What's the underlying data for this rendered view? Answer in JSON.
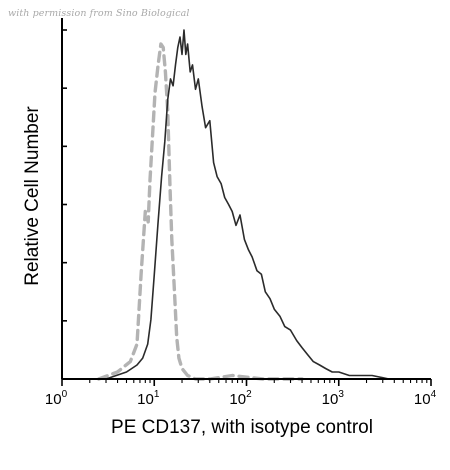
{
  "watermark": "with permission from Sino Biological",
  "colors": {
    "sample": "#2b2b2b",
    "isotype": "#b3b3b3",
    "axis": "#000000"
  },
  "chart_data": {
    "type": "line",
    "title": "",
    "xlabel": "PE CD137, with isotype control",
    "ylabel": "Relative Cell Number",
    "xscale": "log",
    "xlim": [
      1,
      10000
    ],
    "ylim": [
      0,
      1.0
    ],
    "x_ticks": [
      {
        "value": 1,
        "base": "10",
        "exp": "0"
      },
      {
        "value": 10,
        "base": "10",
        "exp": "1"
      },
      {
        "value": 100,
        "base": "10",
        "exp": "2"
      },
      {
        "value": 1000,
        "base": "10",
        "exp": "3"
      },
      {
        "value": 10000,
        "base": "10",
        "exp": "4"
      }
    ],
    "y_ticks_count": 6,
    "legend": "none",
    "grid": false,
    "series": [
      {
        "style": "dashed",
        "color": "#b3b3b3",
        "x": [
          2.5,
          4.0,
          5.5,
          6.5,
          7.2,
          8.0,
          8.6,
          9.0,
          9.5,
          10.2,
          11.0,
          11.8,
          12.5,
          13.2,
          14.0,
          14.8,
          15.5,
          16.5,
          17.5,
          18.5,
          20.0,
          23.0,
          28.0,
          40.0,
          70.0,
          150.0,
          400.0
        ],
        "y": [
          0.0,
          0.02,
          0.05,
          0.1,
          0.3,
          0.48,
          0.45,
          0.57,
          0.68,
          0.82,
          0.9,
          0.96,
          0.95,
          0.88,
          0.77,
          0.55,
          0.4,
          0.26,
          0.12,
          0.06,
          0.03,
          0.01,
          0.0,
          0.0,
          0.01,
          0.0,
          0.0
        ]
      },
      {
        "style": "solid",
        "color": "#2b2b2b",
        "x": [
          3.0,
          5.0,
          6.5,
          7.5,
          8.5,
          9.2,
          10.0,
          11.0,
          12.0,
          13.0,
          14.0,
          15.0,
          16.0,
          17.0,
          18.0,
          19.0,
          20.0,
          21.0,
          22.0,
          23.0,
          24.5,
          26.0,
          28.0,
          30.0,
          33.0,
          36.0,
          40.0,
          44.0,
          48.0,
          53.0,
          58.0,
          64.0,
          70.0,
          77.0,
          85.0,
          95.0,
          105.0,
          115.0,
          130.0,
          145.0,
          160.0,
          180.0,
          200.0,
          230.0,
          260.0,
          300.0,
          350.0,
          400.0,
          460.0,
          530.0,
          620.0,
          720.0,
          850.0,
          1000.0,
          1300.0,
          1700.0,
          2300.0,
          3500.0,
          5000.0
        ],
        "y": [
          0.0,
          0.02,
          0.04,
          0.06,
          0.1,
          0.17,
          0.3,
          0.45,
          0.58,
          0.68,
          0.8,
          0.86,
          0.84,
          0.9,
          0.95,
          0.98,
          0.93,
          1.0,
          0.93,
          0.96,
          0.88,
          0.9,
          0.83,
          0.86,
          0.78,
          0.72,
          0.74,
          0.62,
          0.58,
          0.56,
          0.52,
          0.5,
          0.48,
          0.44,
          0.47,
          0.4,
          0.37,
          0.35,
          0.31,
          0.3,
          0.25,
          0.23,
          0.2,
          0.18,
          0.15,
          0.14,
          0.11,
          0.09,
          0.07,
          0.05,
          0.04,
          0.03,
          0.02,
          0.02,
          0.01,
          0.01,
          0.01,
          0.0,
          0.0
        ]
      }
    ]
  }
}
